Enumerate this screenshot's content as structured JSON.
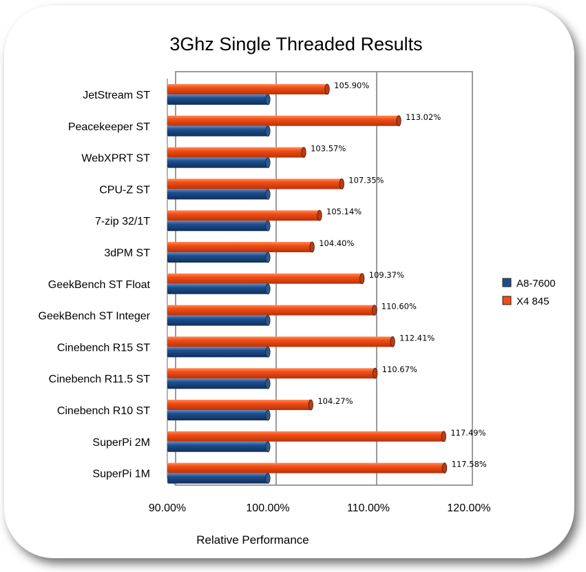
{
  "chart_data": {
    "type": "bar",
    "orientation": "horizontal",
    "title": "3Ghz Single Threaded Results",
    "xlabel": "Relative Performance",
    "ylabel": "",
    "xlim": [
      90,
      120
    ],
    "x_ticks": [
      90,
      100,
      110,
      120
    ],
    "x_tick_labels": [
      "90.00%",
      "100.00%",
      "110.00%",
      "120.00%"
    ],
    "grid": true,
    "legend_position": "right",
    "categories": [
      "JetStream ST",
      "Peacekeeper ST",
      "WebXPRT ST",
      "CPU-Z ST",
      "7-zip 32/1T",
      "3dPM ST",
      "GeekBench ST Float",
      "GeekBench ST Integer",
      "Cinebench R15 ST",
      "Cinebench R11.5 ST",
      "Cinebench R10 ST",
      "SuperPi 2M",
      "SuperPi 1M"
    ],
    "series": [
      {
        "name": "A8-7600",
        "color": "#1f4f8a",
        "values": [
          100,
          100,
          100,
          100,
          100,
          100,
          100,
          100,
          100,
          100,
          100,
          100,
          100
        ],
        "labels": [
          "",
          "",
          "",
          "",
          "",
          "",
          "",
          "",
          "",
          "",
          "",
          "",
          ""
        ]
      },
      {
        "name": "X4 845",
        "color": "#f24e14",
        "values": [
          105.9,
          113.02,
          103.57,
          107.35,
          105.14,
          104.4,
          109.37,
          110.6,
          112.41,
          110.67,
          104.27,
          117.49,
          117.58
        ],
        "labels": [
          "105.90%",
          "113.02%",
          "103.57%",
          "107.35%",
          "105.14%",
          "104.40%",
          "109.37%",
          "110.60%",
          "112.41%",
          "110.67%",
          "104.27%",
          "117.49%",
          "117.58%"
        ]
      }
    ]
  }
}
